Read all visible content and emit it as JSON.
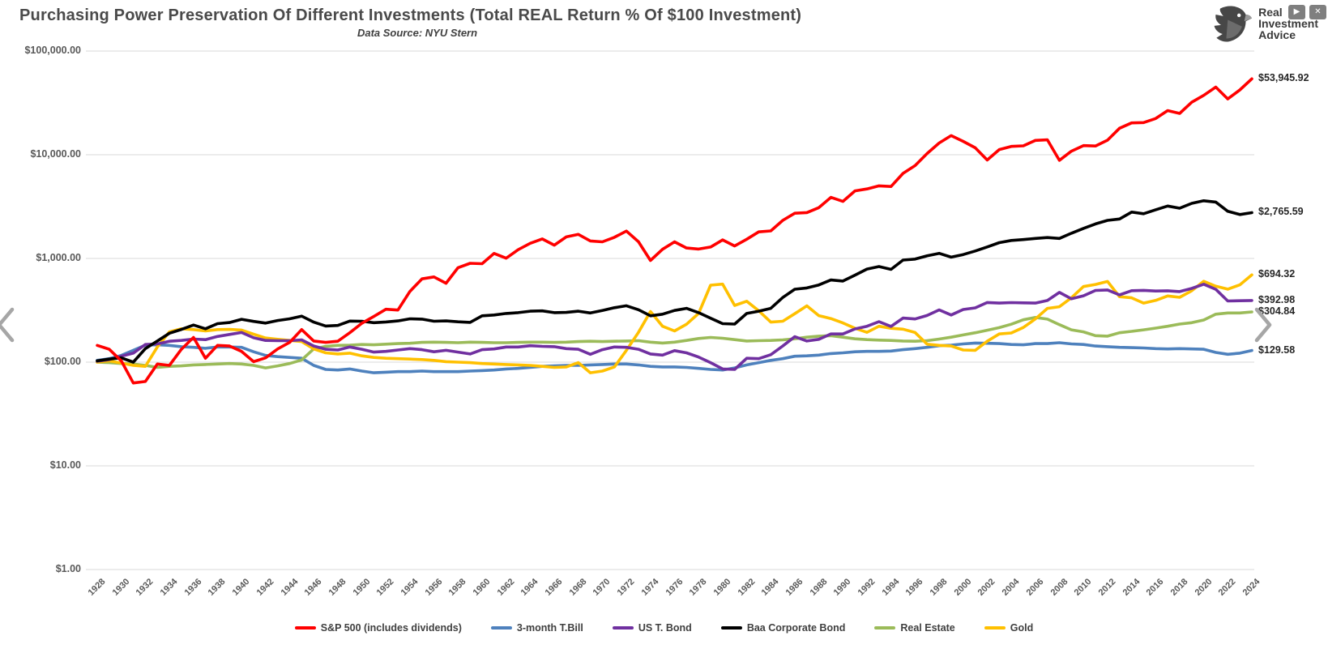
{
  "header": {
    "title": "Purchasing Power Preservation Of Different Investments (Total REAL Return % Of $100 Investment)",
    "subtitle": "Data Source: NYU Stern"
  },
  "brand": {
    "line1": "Real",
    "line2": "Investment",
    "line3": "Advice"
  },
  "window_controls": {
    "play": "▶",
    "close": "✕"
  },
  "icons": {
    "logo": "eagle-icon",
    "play": "play-icon",
    "close": "close-icon",
    "prev": "chevron-left-icon",
    "next": "chevron-right-icon"
  },
  "chart_data": {
    "type": "line",
    "title": "Purchasing Power Preservation Of Different Investments (Total REAL Return % Of $100 Investment)",
    "subtitle": "Data Source: NYU Stern",
    "y_scale": "log",
    "grid": "horizontal",
    "legend_position": "bottom",
    "y_ticks": [
      {
        "value": 100000,
        "label": "$100,000.00"
      },
      {
        "value": 10000,
        "label": "$10,000.00"
      },
      {
        "value": 1000,
        "label": "$1,000.00"
      },
      {
        "value": 100,
        "label": "$100.00"
      },
      {
        "value": 10,
        "label": "$10.00"
      },
      {
        "value": 1,
        "label": "$1.00"
      }
    ],
    "x_tick_interval": 2,
    "years": [
      1928,
      1929,
      1930,
      1931,
      1932,
      1933,
      1934,
      1935,
      1936,
      1937,
      1938,
      1939,
      1940,
      1941,
      1942,
      1943,
      1944,
      1945,
      1946,
      1947,
      1948,
      1949,
      1950,
      1951,
      1952,
      1953,
      1954,
      1955,
      1956,
      1957,
      1958,
      1959,
      1960,
      1961,
      1962,
      1963,
      1964,
      1965,
      1966,
      1967,
      1968,
      1969,
      1970,
      1971,
      1972,
      1973,
      1974,
      1975,
      1976,
      1977,
      1978,
      1979,
      1980,
      1981,
      1982,
      1983,
      1984,
      1985,
      1986,
      1987,
      1988,
      1989,
      1990,
      1991,
      1992,
      1993,
      1994,
      1995,
      1996,
      1997,
      1998,
      1999,
      2000,
      2001,
      2002,
      2003,
      2004,
      2005,
      2006,
      2007,
      2008,
      2009,
      2010,
      2011,
      2012,
      2013,
      2014,
      2015,
      2016,
      2017,
      2018,
      2019,
      2020,
      2021,
      2022,
      2023,
      2024
    ],
    "series": [
      {
        "name": "S&P 500 (includes dividends)",
        "color": "#FF0000",
        "end_label": "$53,945.92",
        "values": [
          145,
          133,
          103,
          63,
          65,
          96,
          93,
          133,
          173,
          109,
          145,
          143,
          127,
          101,
          110,
          134,
          155,
          206,
          160,
          155,
          159,
          192,
          237,
          276,
          324,
          318,
          481,
          636,
          663,
          577,
          815,
          898,
          889,
          1118,
          1006,
          1214,
          1399,
          1543,
          1343,
          1613,
          1707,
          1475,
          1447,
          1600,
          1838,
          1449,
          956,
          1225,
          1446,
          1261,
          1232,
          1289,
          1509,
          1320,
          1531,
          1805,
          1843,
          2330,
          2731,
          2767,
          3088,
          3880,
          3545,
          4480,
          4680,
          5009,
          4944,
          6615,
          7855,
          10281,
          12986,
          15288,
          13452,
          11678,
          8901,
          11215,
          12027,
          12191,
          13745,
          13930,
          8830,
          10827,
          12248,
          12145,
          13834,
          18012,
          20292,
          20424,
          22364,
          26635,
          25032,
          32109,
          37388,
          44873,
          34552,
          42146,
          53945.92
        ]
      },
      {
        "name": "3-month T.Bill",
        "color": "#4E81BD",
        "end_label": "$129.58",
        "values": [
          104,
          108,
          116,
          130,
          146,
          147,
          145,
          141,
          139,
          136,
          140,
          140,
          139,
          126,
          116,
          113,
          111,
          109,
          93,
          85,
          84,
          86,
          82,
          79,
          80,
          81,
          81,
          82,
          81,
          81,
          81,
          82,
          83,
          84,
          86,
          87,
          89,
          91,
          92,
          93,
          93,
          94,
          95,
          96,
          96,
          94,
          91,
          90,
          90,
          89,
          87,
          85,
          84,
          88,
          94,
          99,
          104,
          108,
          114,
          115,
          117,
          121,
          123,
          126,
          127,
          127,
          128,
          132,
          135,
          139,
          144,
          146,
          150,
          153,
          152,
          151,
          148,
          147,
          151,
          151,
          154,
          150,
          148,
          143,
          141,
          139,
          138,
          137,
          135,
          134,
          135,
          134,
          133,
          124,
          119,
          122,
          129.58
        ]
      },
      {
        "name": "US T. Bond",
        "color": "#7030A0",
        "end_label": "$392.98",
        "values": [
          102,
          106,
          114,
          122,
          148,
          150,
          159,
          162,
          167,
          165,
          177,
          185,
          193,
          172,
          162,
          161,
          161,
          164,
          143,
          133,
          131,
          140,
          133,
          125,
          127,
          131,
          135,
          132,
          126,
          130,
          125,
          120,
          132,
          134,
          140,
          140,
          144,
          142,
          141,
          135,
          133,
          119,
          132,
          140,
          139,
          133,
          120,
          117,
          129,
          123,
          112,
          99,
          86,
          85,
          109,
          108,
          118,
          143,
          176,
          160,
          166,
          187,
          187,
          209,
          222,
          246,
          221,
          266,
          261,
          282,
          319,
          285,
          322,
          334,
          376,
          371,
          375,
          373,
          371,
          393,
          471,
          408,
          436,
          491,
          497,
          445,
          489,
          492,
          485,
          488,
          479,
          514,
          564,
          504,
          389,
          391,
          392.98
        ]
      },
      {
        "name": "Baa Corporate Bond",
        "color": "#000000",
        "end_label": "$2,765.59",
        "values": [
          103,
          107,
          110,
          100,
          135,
          160,
          190,
          207,
          228,
          210,
          235,
          241,
          259,
          247,
          238,
          252,
          262,
          278,
          243,
          223,
          226,
          249,
          248,
          240,
          244,
          250,
          262,
          260,
          248,
          250,
          245,
          242,
          280,
          285,
          295,
          300,
          310,
          312,
          300,
          302,
          310,
          298,
          315,
          335,
          350,
          320,
          280,
          290,
          315,
          330,
          300,
          265,
          235,
          233,
          295,
          310,
          330,
          420,
          505,
          520,
          555,
          620,
          605,
          690,
          790,
          835,
          785,
          965,
          985,
          1060,
          1120,
          1030,
          1090,
          1180,
          1290,
          1420,
          1490,
          1520,
          1560,
          1590,
          1560,
          1750,
          1950,
          2150,
          2330,
          2400,
          2800,
          2700,
          2950,
          3200,
          3050,
          3400,
          3600,
          3500,
          2850,
          2650,
          2765.59
        ]
      },
      {
        "name": "Real Estate",
        "color": "#9BBB59",
        "end_label": "$304.84",
        "values": [
          100,
          99,
          97,
          96,
          93,
          89,
          91,
          92,
          94,
          95,
          96,
          97,
          96,
          93,
          88,
          92,
          97,
          105,
          134,
          142,
          145,
          146,
          148,
          147,
          149,
          151,
          152,
          155,
          156,
          155,
          154,
          156,
          155,
          154,
          154,
          155,
          156,
          156,
          155,
          156,
          158,
          159,
          158,
          159,
          160,
          161,
          156,
          153,
          156,
          162,
          169,
          173,
          170,
          165,
          160,
          161,
          162,
          164,
          168,
          174,
          178,
          180,
          174,
          168,
          165,
          163,
          162,
          160,
          159,
          161,
          167,
          174,
          183,
          192,
          203,
          215,
          232,
          256,
          270,
          260,
          230,
          205,
          196,
          180,
          178,
          192,
          198,
          205,
          213,
          222,
          233,
          240,
          255,
          290,
          298,
          298,
          304.84
        ]
      },
      {
        "name": "Gold",
        "color": "#FFC000",
        "end_label": "$694.32",
        "values": [
          100,
          103,
          98,
          93,
          91,
          140,
          196,
          210,
          206,
          200,
          206,
          207,
          204,
          186,
          171,
          166,
          162,
          158,
          134,
          123,
          120,
          122,
          115,
          111,
          109,
          108,
          107,
          106,
          104,
          101,
          100,
          99,
          97,
          96,
          95,
          94,
          93,
          91,
          89,
          90,
          99,
          79,
          82,
          90,
          130,
          194,
          308,
          222,
          200,
          232,
          295,
          552,
          565,
          352,
          387,
          313,
          243,
          248,
          293,
          349,
          281,
          263,
          239,
          212,
          194,
          222,
          212,
          208,
          193,
          149,
          145,
          143,
          131,
          130,
          159,
          187,
          191,
          216,
          261,
          330,
          342,
          417,
          536,
          561,
          600,
          428,
          417,
          371,
          394,
          435,
          422,
          488,
          602,
          540,
          506,
          556,
          694.32
        ]
      }
    ]
  }
}
